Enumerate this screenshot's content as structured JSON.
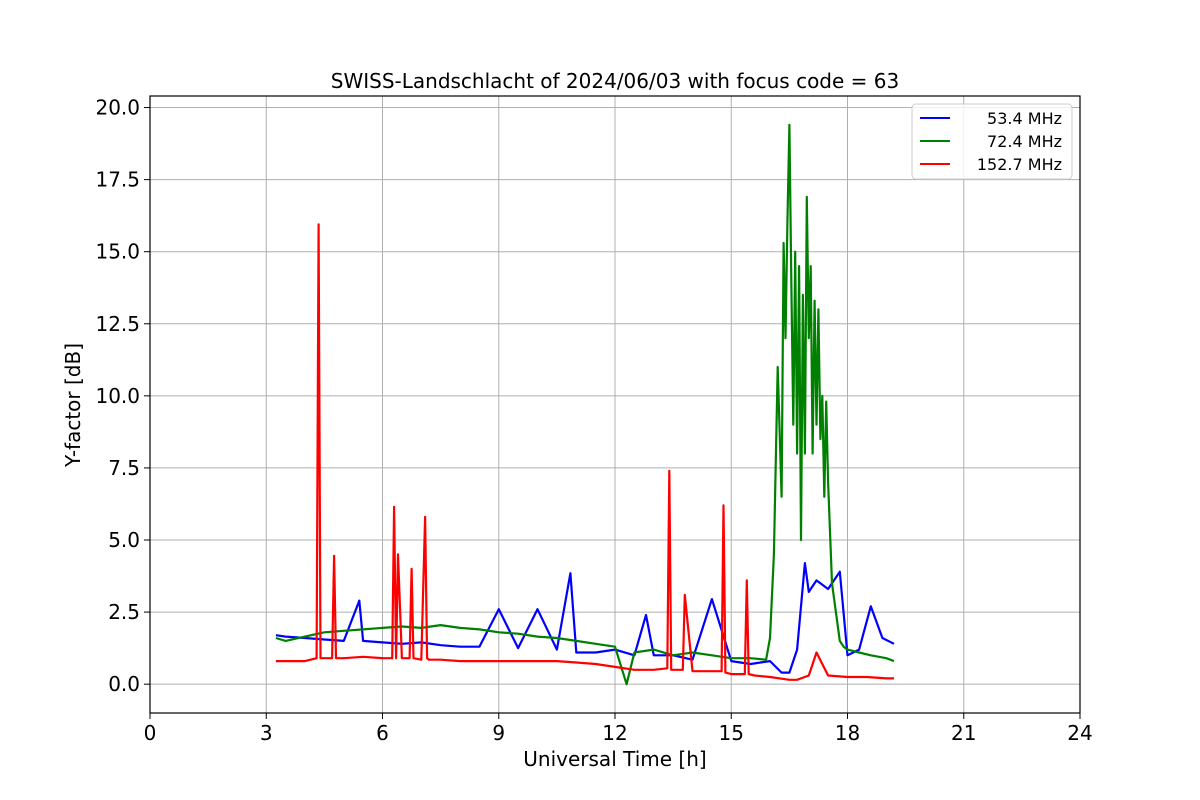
{
  "chart_data": {
    "type": "line",
    "title": "SWISS-Landschlacht of 2024/06/03 with focus code = 63",
    "xlabel": "Universal Time [h]",
    "ylabel": "Y-factor [dB]",
    "xlim": [
      0,
      24
    ],
    "ylim": [
      -1,
      20.4
    ],
    "xticks": [
      0,
      3,
      6,
      9,
      12,
      15,
      18,
      21,
      24
    ],
    "xtick_labels": [
      "0",
      "3",
      "6",
      "9",
      "12",
      "15",
      "18",
      "21",
      "24"
    ],
    "yticks": [
      0,
      2.5,
      5,
      7.5,
      10,
      12.5,
      15,
      17.5,
      20
    ],
    "ytick_labels": [
      "0.0",
      "2.5",
      "5.0",
      "7.5",
      "10.0",
      "12.5",
      "15.0",
      "17.5",
      "20.0"
    ],
    "grid": true,
    "legend_position": "top-right",
    "series": [
      {
        "name": "53.4 MHz",
        "color": "#0000ff",
        "x": [
          3.25,
          3.5,
          4.0,
          4.5,
          5.0,
          5.4,
          5.5,
          6.0,
          6.5,
          7.0,
          7.5,
          8.0,
          8.5,
          9.0,
          9.5,
          10.0,
          10.5,
          10.85,
          11.0,
          11.5,
          12.0,
          12.5,
          12.8,
          13.0,
          13.5,
          14.0,
          14.5,
          15.0,
          15.5,
          16.0,
          16.3,
          16.5,
          16.7,
          16.9,
          17.0,
          17.2,
          17.5,
          17.8,
          18.0,
          18.3,
          18.6,
          18.9,
          19.2
        ],
        "y": [
          1.7,
          1.65,
          1.6,
          1.55,
          1.5,
          2.9,
          1.5,
          1.45,
          1.4,
          1.45,
          1.35,
          1.3,
          1.3,
          2.6,
          1.25,
          2.6,
          1.2,
          3.85,
          1.1,
          1.1,
          1.2,
          1.0,
          2.4,
          1.0,
          1.0,
          0.85,
          2.95,
          0.8,
          0.7,
          0.8,
          0.4,
          0.4,
          1.2,
          4.2,
          3.2,
          3.6,
          3.3,
          3.9,
          1.0,
          1.2,
          2.7,
          1.6,
          1.4
        ]
      },
      {
        "name": "72.4 MHz",
        "color": "#008000",
        "x": [
          3.25,
          3.5,
          4.0,
          4.5,
          5.0,
          5.5,
          6.0,
          6.5,
          7.0,
          7.5,
          8.0,
          8.5,
          9.0,
          9.5,
          10.0,
          10.5,
          11.0,
          11.5,
          12.0,
          12.3,
          12.5,
          13.0,
          13.5,
          14.0,
          14.5,
          15.0,
          15.5,
          15.9,
          16.0,
          16.1,
          16.2,
          16.3,
          16.35,
          16.4,
          16.45,
          16.5,
          16.55,
          16.6,
          16.65,
          16.7,
          16.75,
          16.8,
          16.85,
          16.9,
          16.95,
          17.0,
          17.05,
          17.1,
          17.15,
          17.2,
          17.25,
          17.3,
          17.35,
          17.4,
          17.45,
          17.5,
          17.6,
          17.7,
          17.8,
          17.9,
          18.0,
          18.3,
          18.6,
          19.0,
          19.2
        ],
        "y": [
          1.6,
          1.5,
          1.65,
          1.8,
          1.85,
          1.9,
          1.95,
          2.0,
          1.95,
          2.05,
          1.95,
          1.9,
          1.8,
          1.75,
          1.65,
          1.6,
          1.5,
          1.4,
          1.3,
          0.0,
          1.1,
          1.2,
          1.0,
          1.1,
          1.0,
          0.9,
          0.9,
          0.85,
          1.6,
          4.5,
          11.0,
          6.5,
          15.3,
          12.0,
          16.0,
          19.4,
          14.0,
          9.0,
          15.0,
          8.0,
          14.5,
          5.0,
          13.5,
          8.0,
          16.9,
          12.0,
          14.5,
          8.0,
          13.3,
          9.0,
          13.0,
          8.5,
          10.0,
          6.5,
          9.8,
          7.0,
          3.5,
          2.5,
          1.5,
          1.3,
          1.2,
          1.1,
          1.0,
          0.9,
          0.8
        ]
      },
      {
        "name": "152.7 MHz",
        "color": "#ff0000",
        "x": [
          3.25,
          3.5,
          4.0,
          4.3,
          4.35,
          4.4,
          4.5,
          4.7,
          4.75,
          4.8,
          5.0,
          5.5,
          6.0,
          6.25,
          6.3,
          6.35,
          6.4,
          6.5,
          6.7,
          6.75,
          6.8,
          7.0,
          7.1,
          7.15,
          7.2,
          7.5,
          8.0,
          8.5,
          9.0,
          9.5,
          10.0,
          10.5,
          11.0,
          11.5,
          12.0,
          12.5,
          13.0,
          13.35,
          13.4,
          13.45,
          13.6,
          13.75,
          13.8,
          14.0,
          14.5,
          14.75,
          14.8,
          14.85,
          15.0,
          15.35,
          15.4,
          15.45,
          15.6,
          16.0,
          16.5,
          16.7,
          17.0,
          17.2,
          17.5,
          18.0,
          18.5,
          19.0,
          19.2
        ],
        "y": [
          0.8,
          0.8,
          0.8,
          0.9,
          15.95,
          0.9,
          0.9,
          0.9,
          4.45,
          0.9,
          0.9,
          0.95,
          0.9,
          0.9,
          6.15,
          0.9,
          4.5,
          0.9,
          0.9,
          4.0,
          0.9,
          0.85,
          5.8,
          0.9,
          0.85,
          0.85,
          0.8,
          0.8,
          0.8,
          0.8,
          0.8,
          0.8,
          0.75,
          0.7,
          0.6,
          0.5,
          0.5,
          0.55,
          7.4,
          0.5,
          0.5,
          0.5,
          3.1,
          0.45,
          0.45,
          0.45,
          6.2,
          0.4,
          0.35,
          0.35,
          3.6,
          0.35,
          0.3,
          0.25,
          0.15,
          0.15,
          0.3,
          1.1,
          0.3,
          0.25,
          0.25,
          0.2,
          0.2
        ]
      }
    ]
  }
}
